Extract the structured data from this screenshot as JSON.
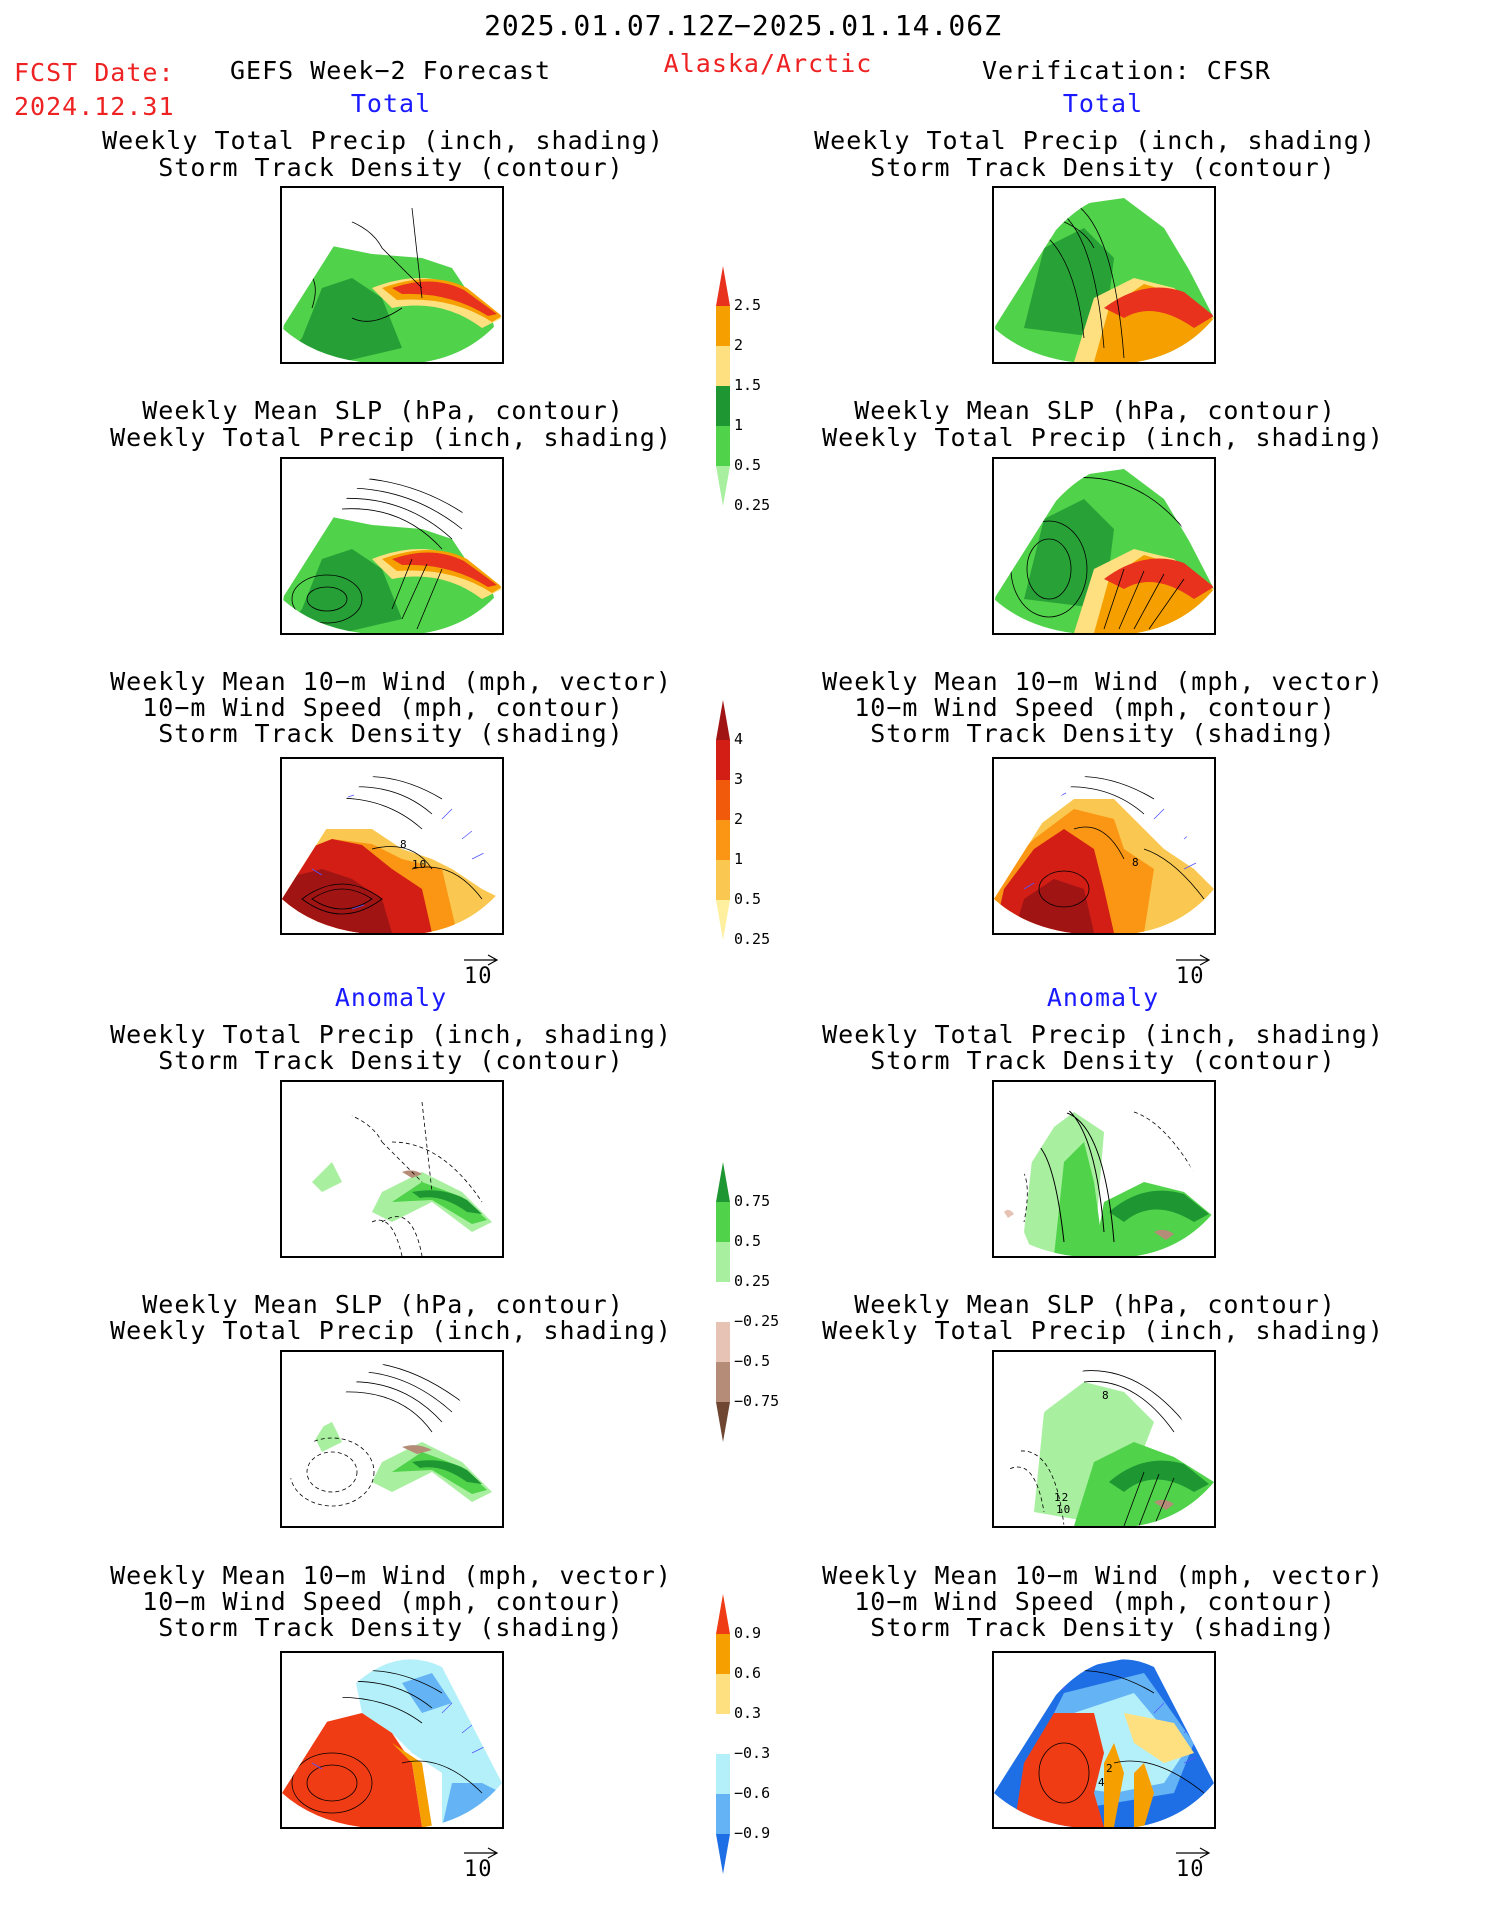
{
  "header": {
    "period": "2025.01.07.12Z−2025.01.14.06Z",
    "fcst_label": "FCST Date:",
    "fcst_date": "2024.12.31",
    "model": "GEFS Week−2 Forecast",
    "region": "Alaska/Arctic",
    "verification": "Verification: CFSR"
  },
  "sections": {
    "total": "Total",
    "anomaly": "Anomaly"
  },
  "titles": {
    "precip_track": [
      "Weekly Total Precip (inch, shading)",
      "Storm Track Density (contour)"
    ],
    "slp_precip": [
      "Weekly Mean SLP (hPa, contour)",
      "Weekly Total Precip (inch, shading)"
    ],
    "wind_track": [
      "Weekly Mean 10−m Wind (mph, vector)",
      "10−m Wind Speed (mph, contour)",
      "Storm Track Density (shading)"
    ]
  },
  "vector_reference": "10",
  "contour_labels": {
    "fc_wind_a": "8",
    "fc_wind_b": "10",
    "cfsr_wind": "8",
    "cfsr_slp_anom_a": "8",
    "cfsr_slp_anom_b": "12",
    "cfsr_slp_anom_c": "10",
    "cfsr_wind_anom_a": "2",
    "cfsr_wind_anom_b": "4"
  },
  "colorbars": {
    "precip": {
      "labels": [
        "2.5",
        "2",
        "1.5",
        "1",
        "0.5",
        "0.25"
      ],
      "colors": [
        "#e8321e",
        "#f5a000",
        "#ffe080",
        "#1e9632",
        "#50d24a",
        "#a8f0a0"
      ]
    },
    "storm_track": {
      "labels": [
        "4",
        "3",
        "2",
        "1",
        "0.5",
        "0.25"
      ],
      "colors": [
        "#a01414",
        "#d21e14",
        "#f05a0a",
        "#fa9614",
        "#fac850",
        "#fff0a0"
      ]
    },
    "precip_anom": {
      "labels": [
        "0.75",
        "0.5",
        "0.25",
        "−0.25",
        "−0.5",
        "−0.75"
      ],
      "colors": [
        "#1e9632",
        "#50d24a",
        "#a8f0a0",
        "#ffffff",
        "#e6c3b4",
        "#b48c78",
        "#6e4632"
      ]
    },
    "track_anom": {
      "labels": [
        "0.9",
        "0.6",
        "0.3",
        "−0.3",
        "−0.6",
        "−0.9"
      ],
      "colors": [
        "#f03c14",
        "#f5a000",
        "#ffe080",
        "#ffffff",
        "#b4f0fa",
        "#64b4f5",
        "#1e6ee6"
      ]
    }
  },
  "colors": {
    "green": "#1e9632",
    "light_green": "#50d24a",
    "pale_green": "#a8f0a0",
    "red": "#e8321e",
    "orange": "#f5a000",
    "yellow": "#ffe080",
    "dark_red": "#a01414",
    "brown": "#b48c78",
    "blue": "#1e6ee6",
    "light_blue": "#64b4f5",
    "vector": "#5555ff"
  }
}
